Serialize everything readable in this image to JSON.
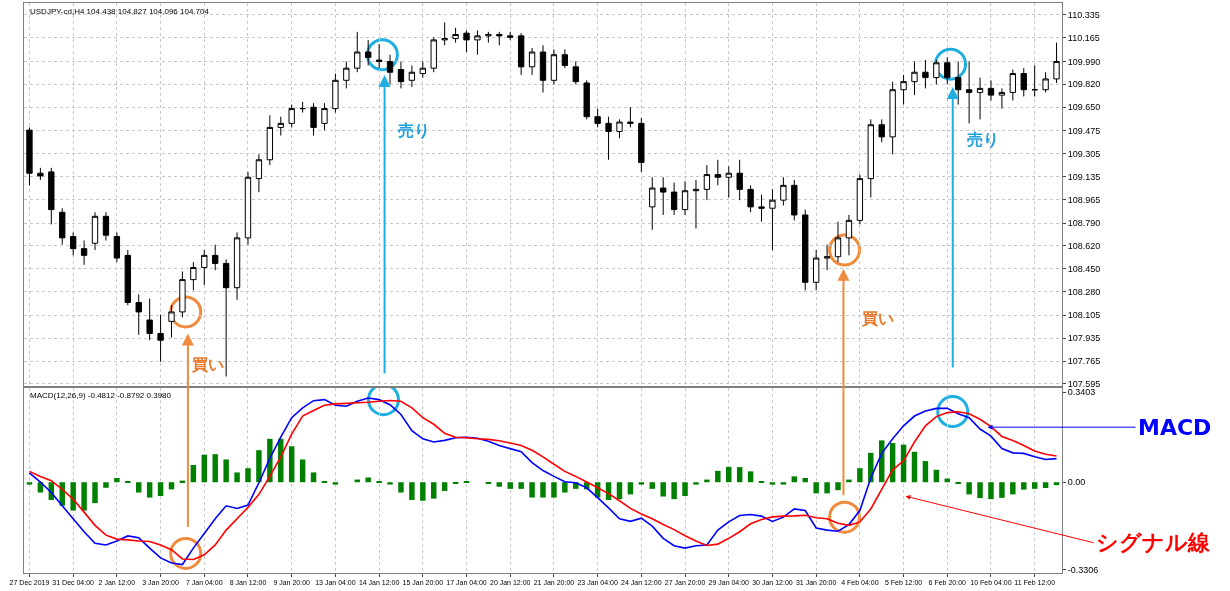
{
  "chart_data": [
    {
      "type": "candlestick",
      "title": "USDJPY-cd,H4 104.438 104.827 104.096 104.704",
      "categories": [
        "27 Dec 2019",
        null,
        null,
        null,
        "31 Dec 04:00",
        null,
        null,
        null,
        "2 Jan 12:00",
        null,
        null,
        null,
        "3 Jan 20:00",
        null,
        null,
        null,
        "7 Jan 04:00",
        null,
        null,
        null,
        "8 Jan 12:00",
        null,
        null,
        null,
        "9 Jan 20:00",
        null,
        null,
        null,
        "13 Jan 04:00",
        null,
        null,
        null,
        "14 Jan 12:00",
        null,
        null,
        null,
        "15 Jan 20:00",
        null,
        null,
        null,
        "17 Jan 04:00",
        null,
        null,
        null,
        "20 Jan 12:00",
        null,
        null,
        null,
        "21 Jan 20:00",
        null,
        null,
        null,
        "23 Jan 04:00",
        null,
        null,
        null,
        "24 Jan 12:00",
        null,
        null,
        null,
        "27 Jan 20:00",
        null,
        null,
        null,
        "29 Jan 04:00",
        null,
        null,
        null,
        "30 Jan 12:00",
        null,
        null,
        null,
        "31 Jan 20:00",
        null,
        null,
        null,
        "4 Feb 04:00",
        null,
        null,
        null,
        "5 Feb 12:00",
        null,
        null,
        null,
        "6 Feb 20:00",
        null,
        null,
        null,
        "10 Feb 04:00",
        null,
        null,
        null,
        "11 Feb 12:00",
        null,
        null
      ],
      "ohlc": [
        [
          109.48,
          109.5,
          109.07,
          109.16
        ],
        [
          109.16,
          109.2,
          109.11,
          109.14
        ],
        [
          109.17,
          109.2,
          108.78,
          108.89
        ],
        [
          108.87,
          108.9,
          108.63,
          108.68
        ],
        [
          108.69,
          108.72,
          108.55,
          108.6
        ],
        [
          108.6,
          108.66,
          108.48,
          108.55
        ],
        [
          108.64,
          108.87,
          108.59,
          108.84
        ],
        [
          108.84,
          108.87,
          108.66,
          108.7
        ],
        [
          108.69,
          108.72,
          108.5,
          108.53
        ],
        [
          108.55,
          108.59,
          108.18,
          108.2
        ],
        [
          108.2,
          108.26,
          107.96,
          108.13
        ],
        [
          108.07,
          108.23,
          107.92,
          107.97
        ],
        [
          107.97,
          108.11,
          107.76,
          107.92
        ],
        [
          108.06,
          108.18,
          107.94,
          108.13
        ],
        [
          108.13,
          108.43,
          108.09,
          108.37
        ],
        [
          108.37,
          108.5,
          108.29,
          108.46
        ],
        [
          108.46,
          108.59,
          108.33,
          108.55
        ],
        [
          108.55,
          108.63,
          108.44,
          108.49
        ],
        [
          108.49,
          108.52,
          107.65,
          108.31
        ],
        [
          108.31,
          108.72,
          108.22,
          108.68
        ],
        [
          108.68,
          109.17,
          108.63,
          109.13
        ],
        [
          109.12,
          109.3,
          109.02,
          109.26
        ],
        [
          109.26,
          109.59,
          109.22,
          109.5
        ],
        [
          109.5,
          109.58,
          109.44,
          109.53
        ],
        [
          109.53,
          109.67,
          109.5,
          109.64
        ],
        [
          109.64,
          109.69,
          109.61,
          109.64
        ],
        [
          109.65,
          109.68,
          109.44,
          109.5
        ],
        [
          109.53,
          109.68,
          109.48,
          109.64
        ],
        [
          109.64,
          109.9,
          109.61,
          109.85
        ],
        [
          109.85,
          109.99,
          109.79,
          109.94
        ],
        [
          109.94,
          110.21,
          109.91,
          110.06
        ],
        [
          110.06,
          110.15,
          109.96,
          110.02
        ],
        [
          110.0,
          110.12,
          109.94,
          109.99
        ],
        [
          109.99,
          110.04,
          109.82,
          109.91
        ],
        [
          109.93,
          109.99,
          109.79,
          109.84
        ],
        [
          109.85,
          109.96,
          109.8,
          109.91
        ],
        [
          109.9,
          109.99,
          109.87,
          109.94
        ],
        [
          109.94,
          110.17,
          109.91,
          110.15
        ],
        [
          110.15,
          110.28,
          110.11,
          110.16
        ],
        [
          110.16,
          110.24,
          110.13,
          110.19
        ],
        [
          110.2,
          110.22,
          110.06,
          110.15
        ],
        [
          110.15,
          110.22,
          110.04,
          110.18
        ],
        [
          110.18,
          110.21,
          110.13,
          110.19
        ],
        [
          110.19,
          110.21,
          110.11,
          110.18
        ],
        [
          110.18,
          110.21,
          110.15,
          110.17
        ],
        [
          110.18,
          110.2,
          109.89,
          109.95
        ],
        [
          109.95,
          110.09,
          109.89,
          110.06
        ],
        [
          110.06,
          110.11,
          109.76,
          109.85
        ],
        [
          109.85,
          110.08,
          109.82,
          110.04
        ],
        [
          110.04,
          110.08,
          109.94,
          109.96
        ],
        [
          109.95,
          109.99,
          109.82,
          109.84
        ],
        [
          109.83,
          109.85,
          109.56,
          109.58
        ],
        [
          109.58,
          109.64,
          109.5,
          109.53
        ],
        [
          109.53,
          109.58,
          109.26,
          109.47
        ],
        [
          109.47,
          109.56,
          109.42,
          109.54
        ],
        [
          109.54,
          109.65,
          109.5,
          109.53
        ],
        [
          109.53,
          109.57,
          109.17,
          109.24
        ],
        [
          108.91,
          109.13,
          108.74,
          109.05
        ],
        [
          109.05,
          109.13,
          108.85,
          109.02
        ],
        [
          109.02,
          109.09,
          108.85,
          108.89
        ],
        [
          108.89,
          109.1,
          108.85,
          109.03
        ],
        [
          109.03,
          109.11,
          108.75,
          109.04
        ],
        [
          109.04,
          109.22,
          108.96,
          109.15
        ],
        [
          109.15,
          109.26,
          109.07,
          109.13
        ],
        [
          109.13,
          109.21,
          108.98,
          109.16
        ],
        [
          109.16,
          109.26,
          108.96,
          109.04
        ],
        [
          109.04,
          109.07,
          108.87,
          108.91
        ],
        [
          108.91,
          109.0,
          108.8,
          108.9
        ],
        [
          108.9,
          109.04,
          108.59,
          108.96
        ],
        [
          108.96,
          109.13,
          108.92,
          109.07
        ],
        [
          109.07,
          109.11,
          108.81,
          108.85
        ],
        [
          108.85,
          108.89,
          108.29,
          108.35
        ],
        [
          108.35,
          108.59,
          108.29,
          108.53
        ],
        [
          108.53,
          108.63,
          108.44,
          108.54
        ],
        [
          108.54,
          108.8,
          108.5,
          108.68
        ],
        [
          108.68,
          108.85,
          108.55,
          108.81
        ],
        [
          108.81,
          109.15,
          108.78,
          109.12
        ],
        [
          109.12,
          109.56,
          108.98,
          109.52
        ],
        [
          109.52,
          109.56,
          109.39,
          109.43
        ],
        [
          109.43,
          109.84,
          109.3,
          109.78
        ],
        [
          109.78,
          109.89,
          109.67,
          109.84
        ],
        [
          109.84,
          109.99,
          109.74,
          109.91
        ],
        [
          109.91,
          110.0,
          109.79,
          109.87
        ],
        [
          109.87,
          110.0,
          109.82,
          109.98
        ],
        [
          109.98,
          110.02,
          109.82,
          109.87
        ],
        [
          109.87,
          109.99,
          109.67,
          109.78
        ],
        [
          109.78,
          109.99,
          109.53,
          109.76
        ],
        [
          109.76,
          109.87,
          109.56,
          109.79
        ],
        [
          109.79,
          109.85,
          109.7,
          109.74
        ],
        [
          109.74,
          109.79,
          109.64,
          109.76
        ],
        [
          109.76,
          109.93,
          109.7,
          109.9
        ],
        [
          109.9,
          109.94,
          109.73,
          109.78
        ],
        [
          109.78,
          109.96,
          109.73,
          109.78
        ],
        [
          109.78,
          109.91,
          109.76,
          109.86
        ],
        [
          109.86,
          110.13,
          109.83,
          109.99
        ]
      ],
      "ylim": [
        107.58,
        110.424
      ],
      "yticks": [
        110.335,
        110.165,
        {
          "value": 109.99,
          "label": "109.990"
        },
        {
          "value": 109.82,
          "label": "109.820"
        },
        {
          "value": 109.65,
          "label": "109.650"
        },
        109.475,
        109.305,
        109.135,
        108.965,
        {
          "value": 108.79,
          "label": "108.790"
        },
        {
          "value": 108.62,
          "label": "108.620"
        },
        {
          "value": 108.45,
          "label": "108.450"
        },
        {
          "value": 108.28,
          "label": "108.280"
        },
        108.105,
        107.935,
        107.765,
        107.595
      ],
      "grid": true,
      "tick_labels": "y",
      "legend": false,
      "annotations": [
        "売り",
        "売り",
        "買い",
        "買い"
      ]
    },
    {
      "type": "bar",
      "title": "MACD(12,26,9) -0.4812 -0.8792 0.3980",
      "categories": [
        "27 Dec 2019",
        null,
        null,
        null,
        "31 Dec 04:00",
        null,
        null,
        null,
        "2 Jan 12:00",
        null,
        null,
        null,
        "3 Jan 20:00",
        null,
        null,
        null,
        "7 Jan 04:00",
        null,
        null,
        null,
        "8 Jan 12:00",
        null,
        null,
        null,
        "9 Jan 20:00",
        null,
        null,
        null,
        "13 Jan 04:00",
        null,
        null,
        null,
        "14 Jan 12:00",
        null,
        null,
        null,
        "15 Jan 20:00",
        null,
        null,
        null,
        "17 Jan 04:00",
        null,
        null,
        null,
        "20 Jan 12:00",
        null,
        null,
        null,
        "21 Jan 20:00",
        null,
        null,
        null,
        "23 Jan 04:00",
        null,
        null,
        null,
        "24 Jan 12:00",
        null,
        null,
        null,
        "27 Jan 20:00",
        null,
        null,
        null,
        "29 Jan 04:00",
        null,
        null,
        null,
        "30 Jan 12:00",
        null,
        null,
        null,
        "31 Jan 20:00",
        null,
        null,
        null,
        "4 Feb 04:00",
        null,
        null,
        null,
        "5 Feb 12:00",
        null,
        null,
        null,
        "6 Feb 20:00",
        null,
        null,
        null,
        "10 Feb 04:00",
        null,
        null,
        null,
        "11 Feb 12:00",
        null,
        null
      ],
      "series": [
        {
          "type": "bar",
          "color": "#008000",
          "values": [
            -0.009,
            -0.039,
            -0.067,
            -0.089,
            -0.107,
            -0.107,
            -0.079,
            -0.021,
            0.016,
            0.004,
            -0.039,
            -0.058,
            -0.052,
            -0.027,
            0.006,
            0.065,
            0.104,
            0.106,
            0.086,
            0.037,
            0.053,
            0.121,
            0.164,
            0.164,
            0.136,
            0.086,
            0.037,
            0.004,
            -0.009,
            0.0,
            0.01,
            0.018,
            0.004,
            -0.009,
            -0.039,
            -0.067,
            -0.07,
            -0.062,
            -0.033,
            -0.005,
            0.002,
            0.0,
            -0.005,
            -0.017,
            -0.025,
            -0.025,
            -0.058,
            -0.058,
            -0.058,
            -0.039,
            -0.025,
            -0.027,
            -0.058,
            -0.067,
            -0.064,
            -0.046,
            -0.009,
            -0.025,
            -0.054,
            -0.064,
            -0.052,
            -0.009,
            0.01,
            0.043,
            0.058,
            0.057,
            0.041,
            0.002,
            -0.009,
            -0.009,
            0.022,
            0.016,
            -0.042,
            -0.042,
            -0.03,
            0.01,
            0.053,
            0.111,
            0.158,
            0.148,
            0.142,
            0.115,
            0.08,
            0.047,
            0.014,
            -0.005,
            -0.046,
            -0.06,
            -0.064,
            -0.059,
            -0.046,
            -0.028,
            -0.025,
            -0.022,
            -0.011
          ]
        },
        {
          "type": "line",
          "name": "MACD",
          "color": "#0000ff",
          "values": [
            0.035,
            0.0,
            -0.039,
            -0.089,
            -0.138,
            -0.187,
            -0.231,
            -0.237,
            -0.222,
            -0.203,
            -0.21,
            -0.249,
            -0.286,
            -0.305,
            -0.311,
            -0.249,
            -0.194,
            -0.138,
            -0.089,
            -0.099,
            -0.086,
            -0.002,
            0.09,
            0.17,
            0.244,
            0.281,
            0.308,
            0.312,
            0.291,
            0.287,
            0.306,
            0.318,
            0.312,
            0.293,
            0.256,
            0.195,
            0.164,
            0.152,
            0.158,
            0.168,
            0.17,
            0.166,
            0.155,
            0.139,
            0.127,
            0.115,
            0.074,
            0.044,
            0.022,
            0.002,
            -0.002,
            -0.021,
            -0.058,
            -0.097,
            -0.138,
            -0.148,
            -0.136,
            -0.166,
            -0.212,
            -0.24,
            -0.249,
            -0.24,
            -0.237,
            -0.181,
            -0.15,
            -0.126,
            -0.122,
            -0.128,
            -0.148,
            -0.132,
            -0.101,
            -0.107,
            -0.173,
            -0.181,
            -0.185,
            -0.16,
            -0.107,
            0.016,
            0.109,
            0.164,
            0.213,
            0.25,
            0.269,
            0.279,
            0.279,
            0.259,
            0.244,
            0.201,
            0.174,
            0.127,
            0.111,
            0.109,
            0.096,
            0.086,
            0.089
          ]
        },
        {
          "type": "line",
          "name": "シグナル線",
          "color": "#ff0000",
          "values": [
            0.041,
            0.022,
            0.006,
            -0.027,
            -0.064,
            -0.113,
            -0.163,
            -0.2,
            -0.215,
            -0.218,
            -0.222,
            -0.224,
            -0.237,
            -0.255,
            -0.29,
            -0.292,
            -0.274,
            -0.237,
            -0.181,
            -0.138,
            -0.095,
            -0.046,
            0.022,
            0.096,
            0.182,
            0.25,
            0.271,
            0.291,
            0.296,
            0.298,
            0.3,
            0.302,
            0.306,
            0.309,
            0.306,
            0.281,
            0.244,
            0.219,
            0.185,
            0.17,
            0.168,
            0.164,
            0.162,
            0.157,
            0.148,
            0.139,
            0.121,
            0.096,
            0.068,
            0.041,
            0.022,
            0.001,
            -0.021,
            -0.043,
            -0.07,
            -0.099,
            -0.12,
            -0.138,
            -0.16,
            -0.179,
            -0.202,
            -0.222,
            -0.239,
            -0.234,
            -0.212,
            -0.187,
            -0.157,
            -0.141,
            -0.131,
            -0.128,
            -0.127,
            -0.125,
            -0.134,
            -0.138,
            -0.155,
            -0.163,
            -0.15,
            -0.101,
            -0.027,
            0.047,
            0.081,
            0.152,
            0.213,
            0.248,
            0.263,
            0.266,
            0.259,
            0.238,
            0.21,
            0.173,
            0.158,
            0.139,
            0.118,
            0.106,
            0.099
          ]
        }
      ],
      "ylim": [
        -0.343,
        0.356
      ],
      "yticks": [
        0.3403,
        {
          "value": 0,
          "label": "0.00"
        },
        -0.3306
      ],
      "grid": "x",
      "legend": false
    }
  ]
}
